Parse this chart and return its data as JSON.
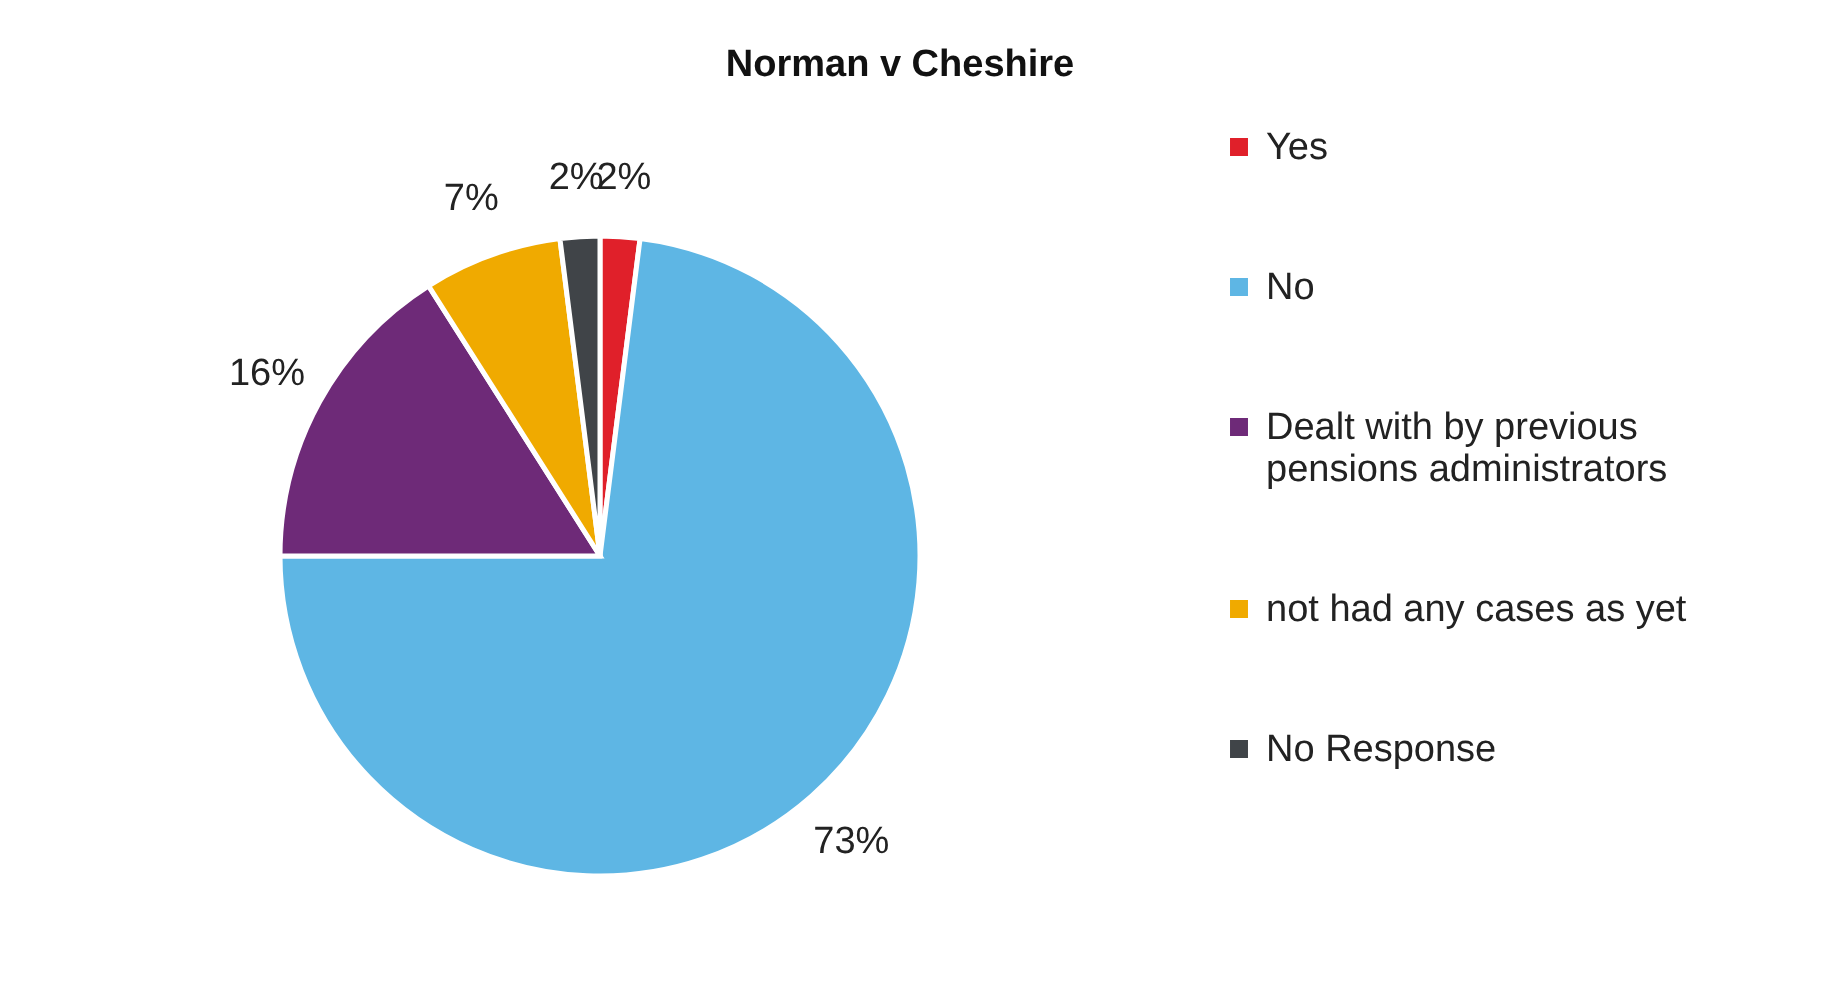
{
  "chart_data": {
    "type": "pie",
    "title": "Norman v Cheshire",
    "categories": [
      "Yes",
      "No",
      "Dealt with by previous pensions administrators",
      "not had any cases as yet",
      "No Response"
    ],
    "values": [
      2,
      73,
      16,
      7,
      2
    ],
    "colors": [
      "#e0202a",
      "#5eb6e4",
      "#6e2a78",
      "#f0aa00",
      "#404448"
    ],
    "value_labels": [
      "2%",
      "73%",
      "16%",
      "7%",
      "2%"
    ],
    "legend": "right"
  }
}
